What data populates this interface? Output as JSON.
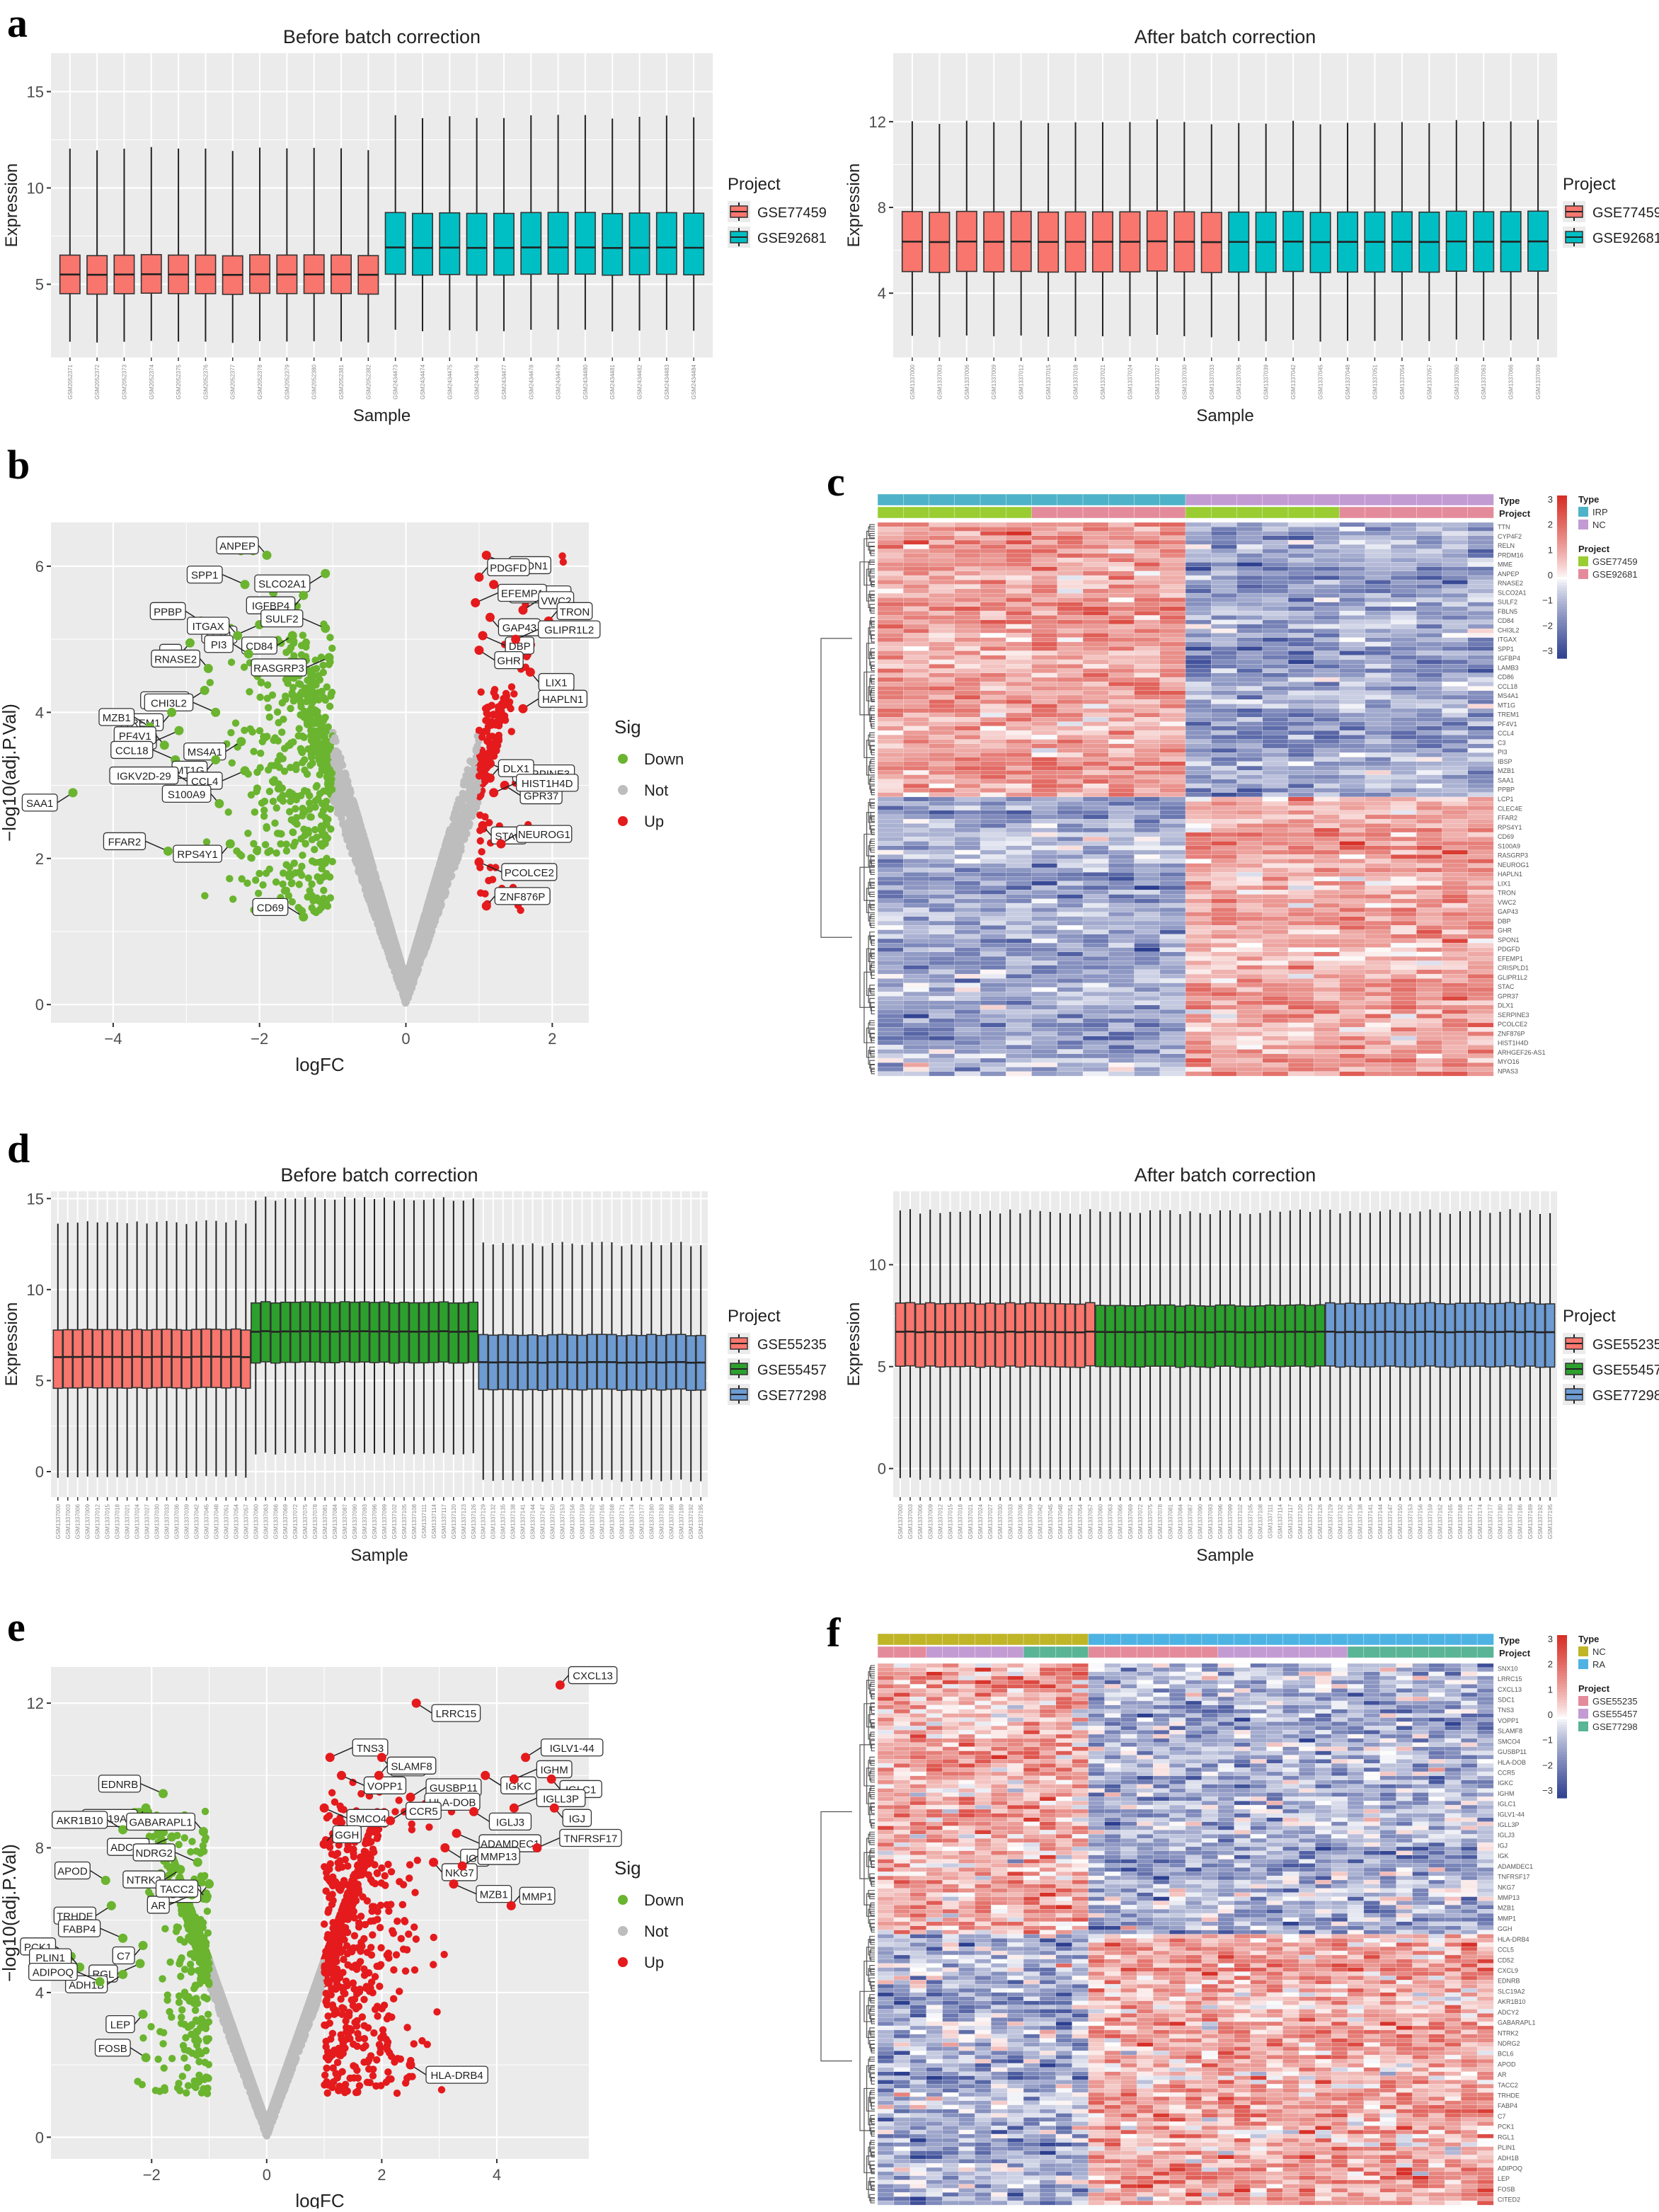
{
  "colors": {
    "panel_bg": "#ebebeb",
    "grid": "#ffffff",
    "red_box": "#f8766d",
    "teal_box": "#00bfc4",
    "green_box": "#2ca02c",
    "blue_box": "#6d9bd2",
    "down": "#6ab42f",
    "not": "#bdbdbd",
    "up": "#e41a1c",
    "heat_high": "#d7301f",
    "heat_mid": "#ffffff",
    "heat_low": "#2c3e8f",
    "type_irp": "#4eb3c8",
    "type_nc_c": "#c39bd3",
    "proj_a": "#9acd32",
    "proj_b": "#e48b9b",
    "type_nc_f": "#c0b527",
    "type_ra": "#4eb3e3",
    "proj_55235": "#e48b9b",
    "proj_55457": "#c39bd3",
    "proj_77298": "#5ab496"
  },
  "panels": {
    "a": {
      "letter": "a"
    },
    "b": {
      "letter": "b"
    },
    "c": {
      "letter": "c"
    },
    "d": {
      "letter": "d"
    },
    "e": {
      "letter": "e"
    },
    "f": {
      "letter": "f"
    }
  },
  "sample_ids_a1": [
    "GSM2052371",
    "GSM2052372",
    "GSM2052373",
    "GSM2052374",
    "GSM2052375",
    "GSM2052376",
    "GSM2052377",
    "GSM2052378",
    "GSM2052379",
    "GSM2052380",
    "GSM2052381",
    "GSM2052382",
    "GSM2434473",
    "GSM2434474",
    "GSM2434475",
    "GSM2434476",
    "GSM2434477",
    "GSM2434478",
    "GSM2434479",
    "GSM2434480",
    "GSM2434481",
    "GSM2434482",
    "GSM2434483",
    "GSM2434484"
  ],
  "chart_data": [
    {
      "id": "a_before",
      "type": "boxplot",
      "title": "Before batch correction",
      "xlabel": "Sample",
      "ylabel": "Expression",
      "ylim": [
        1.2,
        17
      ],
      "yticks": [
        5,
        10,
        15
      ],
      "legend_title": "Project",
      "legend": [
        "GSE77459",
        "GSE92681"
      ],
      "groups": [
        {
          "project": "GSE77459",
          "n": 12,
          "whisker_low": 2.0,
          "q1": 4.5,
          "median": 5.5,
          "q3": 6.5,
          "whisker_high": 12.0
        },
        {
          "project": "GSE92681",
          "n": 12,
          "whisker_low": 2.6,
          "q1": 5.5,
          "median": 6.9,
          "q3": 8.7,
          "whisker_high": 13.7
        }
      ]
    },
    {
      "id": "a_after",
      "type": "boxplot",
      "title": "After batch correction",
      "xlabel": "Sample",
      "ylabel": "Expression",
      "ylim": [
        1.0,
        15.2
      ],
      "yticks": [
        4,
        8,
        12
      ],
      "legend_title": "Project",
      "legend": [
        "GSE77459",
        "GSE92681"
      ],
      "groups": [
        {
          "project": "GSE77459",
          "n": 12,
          "whisker_low": 2.0,
          "q1": 5.0,
          "median": 6.4,
          "q3": 7.8,
          "whisker_high": 12.0
        },
        {
          "project": "GSE92681",
          "n": 12,
          "whisker_low": 1.8,
          "q1": 5.0,
          "median": 6.4,
          "q3": 7.8,
          "whisker_high": 12.0
        }
      ]
    },
    {
      "id": "b_volcano",
      "type": "scatter",
      "xlabel": "logFC",
      "ylabel": "−log10(adj.P.Val)",
      "xlim": [
        -4.85,
        2.5
      ],
      "ylim": [
        -0.25,
        6.6
      ],
      "xticks": [
        -4,
        -2,
        0,
        2
      ],
      "yticks": [
        0,
        2,
        4,
        6
      ],
      "legend_title": "Sig",
      "legend": [
        "Down",
        "Not",
        "Up"
      ],
      "labeled_points": [
        {
          "label": "ANPEP",
          "x": -1.9,
          "y": 6.15,
          "sig": "down"
        },
        {
          "label": "SLCO2A1",
          "x": -1.1,
          "y": 5.9,
          "sig": "down"
        },
        {
          "label": "SPP1",
          "x": -2.2,
          "y": 5.75,
          "sig": "down"
        },
        {
          "label": "IGFBP4",
          "x": -1.4,
          "y": 5.6,
          "sig": "down"
        },
        {
          "label": "PPBP",
          "x": -2.8,
          "y": 5.25,
          "sig": "down"
        },
        {
          "label": "LCP1",
          "x": -2.0,
          "y": 5.2,
          "sig": "down"
        },
        {
          "label": "ITGAX",
          "x": -2.3,
          "y": 5.05,
          "sig": "down"
        },
        {
          "label": "CD84",
          "x": -1.55,
          "y": 5.05,
          "sig": "down"
        },
        {
          "label": "SULF2",
          "x": -1.1,
          "y": 5.15,
          "sig": "down"
        },
        {
          "label": "C3",
          "x": -2.95,
          "y": 4.95,
          "sig": "down"
        },
        {
          "label": "PI3",
          "x": -2.15,
          "y": 4.8,
          "sig": "down"
        },
        {
          "label": "RASGRP3",
          "x": -1.05,
          "y": 4.75,
          "sig": "down"
        },
        {
          "label": "RNASE2",
          "x": -2.7,
          "y": 4.6,
          "sig": "down"
        },
        {
          "label": "CLEC4E",
          "x": -2.75,
          "y": 4.3,
          "sig": "down"
        },
        {
          "label": "CHI3L2",
          "x": -2.6,
          "y": 4.0,
          "sig": "down"
        },
        {
          "label": "TREM1",
          "x": -3.2,
          "y": 4.0,
          "sig": "down"
        },
        {
          "label": "MZB1",
          "x": -3.5,
          "y": 3.8,
          "sig": "down"
        },
        {
          "label": "IBSP",
          "x": -3.1,
          "y": 3.75,
          "sig": "down"
        },
        {
          "label": "PF4V1",
          "x": -3.3,
          "y": 3.55,
          "sig": "down"
        },
        {
          "label": "MS4A1",
          "x": -2.25,
          "y": 3.6,
          "sig": "down"
        },
        {
          "label": "CCL18",
          "x": -3.15,
          "y": 3.35,
          "sig": "down"
        },
        {
          "label": "MT1G",
          "x": -2.6,
          "y": 3.35,
          "sig": "down"
        },
        {
          "label": "IGKV2D-29",
          "x": -2.9,
          "y": 3.0,
          "sig": "down"
        },
        {
          "label": "CCL4",
          "x": -2.2,
          "y": 3.2,
          "sig": "down"
        },
        {
          "label": "S100A9",
          "x": -2.55,
          "y": 2.75,
          "sig": "down"
        },
        {
          "label": "SAA1",
          "x": -4.55,
          "y": 2.9,
          "sig": "down"
        },
        {
          "label": "FFAR2",
          "x": -3.25,
          "y": 2.1,
          "sig": "down"
        },
        {
          "label": "RPS4Y1",
          "x": -2.4,
          "y": 2.2,
          "sig": "down"
        },
        {
          "label": "CD69",
          "x": -1.4,
          "y": 1.2,
          "sig": "down"
        },
        {
          "label": "SPON1",
          "x": 1.1,
          "y": 6.15,
          "sig": "up"
        },
        {
          "label": "PDGFD",
          "x": 1.0,
          "y": 5.85,
          "sig": "up"
        },
        {
          "label": "CRISPLD1",
          "x": 1.2,
          "y": 5.75,
          "sig": "up"
        },
        {
          "label": "EFEMP1",
          "x": 0.95,
          "y": 5.5,
          "sig": "up"
        },
        {
          "label": "GAP43",
          "x": 1.15,
          "y": 5.3,
          "sig": "up"
        },
        {
          "label": "VWC2",
          "x": 1.6,
          "y": 5.4,
          "sig": "up"
        },
        {
          "label": "DBP",
          "x": 1.05,
          "y": 5.05,
          "sig": "up"
        },
        {
          "label": "TRON",
          "x": 1.95,
          "y": 5.25,
          "sig": "up"
        },
        {
          "label": "GHR",
          "x": 1.0,
          "y": 4.85,
          "sig": "up"
        },
        {
          "label": "GLIPR1L2",
          "x": 1.5,
          "y": 5.0,
          "sig": "up"
        },
        {
          "label": "LIX1",
          "x": 1.7,
          "y": 4.55,
          "sig": "up"
        },
        {
          "label": "HAPLN1",
          "x": 1.6,
          "y": 4.05,
          "sig": "up"
        },
        {
          "label": "SERPINE3",
          "x": 1.15,
          "y": 3.3,
          "sig": "up"
        },
        {
          "label": "DLX1",
          "x": 1.15,
          "y": 3.1,
          "sig": "up"
        },
        {
          "label": "GPR37",
          "x": 1.35,
          "y": 3.0,
          "sig": "up"
        },
        {
          "label": "HIST1H4D",
          "x": 1.2,
          "y": 2.9,
          "sig": "up"
        },
        {
          "label": "STAC",
          "x": 1.05,
          "y": 2.45,
          "sig": "up"
        },
        {
          "label": "NEUROG1",
          "x": 1.3,
          "y": 2.2,
          "sig": "up"
        },
        {
          "label": "PCOLCE2",
          "x": 1.0,
          "y": 1.95,
          "sig": "up"
        },
        {
          "label": "ZNF876P",
          "x": 1.1,
          "y": 1.35,
          "sig": "up"
        }
      ]
    },
    {
      "id": "c_heatmap",
      "type": "heatmap",
      "rows": 125,
      "cols": 24,
      "scale_ticks": [
        "3",
        "2",
        "1",
        "0",
        "−1",
        "−2",
        "−3"
      ],
      "annotation_titles": [
        "Type",
        "Project"
      ],
      "legend_type_title": "Type",
      "legend_type": [
        "IRP",
        "NC"
      ],
      "legend_project_title": "Project",
      "legend_project": [
        "GSE77459",
        "GSE92681"
      ],
      "row_labels_visible": [
        "TTN",
        "CYP4F2",
        "RELN",
        "PRDM16",
        "MME",
        "ANPEP",
        "RNASE2",
        "SLCO2A1",
        "SULF2",
        "FBLN5",
        "CD84",
        "CHI3L2",
        "ITGAX",
        "SPP1",
        "IGFBP4",
        "LAMB3",
        "CD86",
        "CCL18",
        "MS4A1",
        "MT1G",
        "TREM1",
        "PF4V1",
        "CCL4",
        "C3",
        "PI3",
        "IBSP",
        "MZB1",
        "SAA1",
        "PPBP",
        "LCP1",
        "CLEC4E",
        "FFAR2",
        "RPS4Y1",
        "CD69",
        "S100A9",
        "RASGRP3",
        "NEUROG1",
        "HAPLN1",
        "LIX1",
        "TRON",
        "VWC2",
        "GAP43",
        "DBP",
        "GHR",
        "SPON1",
        "PDGFD",
        "EFEMP1",
        "CRISPLD1",
        "GLIPR1L2",
        "STAC",
        "GPR37",
        "DLX1",
        "SERPINE3",
        "PCOLCE2",
        "ZNF876P",
        "HIST1H4D",
        "ARHGEF26-AS1",
        "MYO16",
        "NPAS3"
      ]
    },
    {
      "id": "d_before",
      "type": "boxplot",
      "title": "Before batch correction",
      "xlabel": "Sample",
      "ylabel": "Expression",
      "ylim": [
        -1.4,
        15.4
      ],
      "yticks": [
        0,
        5,
        10,
        15
      ],
      "legend_title": "Project",
      "legend": [
        "GSE55235",
        "GSE55457",
        "GSE77298"
      ],
      "groups": [
        {
          "project": "GSE55235",
          "n": 20,
          "whisker_low": -0.3,
          "q1": 4.6,
          "median": 6.3,
          "q3": 7.8,
          "whisker_high": 13.7
        },
        {
          "project": "GSE55457",
          "n": 23,
          "whisker_low": 1.0,
          "q1": 6.0,
          "median": 7.7,
          "q3": 9.3,
          "whisker_high": 15.0
        },
        {
          "project": "GSE77298",
          "n": 23,
          "whisker_low": -0.5,
          "q1": 4.5,
          "median": 6.0,
          "q3": 7.5,
          "whisker_high": 12.5
        }
      ]
    },
    {
      "id": "d_after",
      "type": "boxplot",
      "title": "After batch correction",
      "xlabel": "Sample",
      "ylabel": "Expression",
      "ylim": [
        -1.4,
        13.6
      ],
      "yticks": [
        0,
        5,
        10
      ],
      "legend_title": "Project",
      "legend": [
        "GSE55235",
        "GSE55457",
        "GSE77298"
      ],
      "groups": [
        {
          "project": "GSE55235",
          "n": 20,
          "whisker_low": -0.5,
          "q1": 5.0,
          "median": 6.7,
          "q3": 8.1,
          "whisker_high": 12.6
        },
        {
          "project": "GSE55457",
          "n": 23,
          "whisker_low": -0.5,
          "q1": 5.0,
          "median": 6.7,
          "q3": 8.0,
          "whisker_high": 12.6
        },
        {
          "project": "GSE77298",
          "n": 23,
          "whisker_low": -0.5,
          "q1": 5.0,
          "median": 6.7,
          "q3": 8.1,
          "whisker_high": 12.6
        }
      ]
    },
    {
      "id": "e_volcano",
      "type": "scatter",
      "xlabel": "logFC",
      "ylabel": "−log10(adj.P.Val)",
      "xlim": [
        -3.75,
        5.6
      ],
      "ylim": [
        -0.6,
        13.0
      ],
      "xticks": [
        -2,
        0,
        2,
        4
      ],
      "yticks": [
        0,
        4,
        8,
        12
      ],
      "legend_title": "Sig",
      "legend": [
        "Down",
        "Not",
        "Up"
      ],
      "labeled_points": [
        {
          "label": "CXCL13",
          "x": 5.1,
          "y": 12.5,
          "sig": "up"
        },
        {
          "label": "LRRC15",
          "x": 2.6,
          "y": 12.0,
          "sig": "up"
        },
        {
          "label": "TNS3",
          "x": 1.1,
          "y": 10.5,
          "sig": "up"
        },
        {
          "label": "SDC1",
          "x": 2.0,
          "y": 10.5,
          "sig": "up"
        },
        {
          "label": "IGLV1-44",
          "x": 4.5,
          "y": 10.5,
          "sig": "up"
        },
        {
          "label": "VOPP1",
          "x": 1.3,
          "y": 10.0,
          "sig": "up"
        },
        {
          "label": "SLAMF8",
          "x": 1.95,
          "y": 10.0,
          "sig": "up"
        },
        {
          "label": "IGKC",
          "x": 3.8,
          "y": 10.0,
          "sig": "up"
        },
        {
          "label": "IGHM",
          "x": 4.3,
          "y": 9.9,
          "sig": "up"
        },
        {
          "label": "IGLC1",
          "x": 4.95,
          "y": 9.9,
          "sig": "up"
        },
        {
          "label": "GUSBP11",
          "x": 2.5,
          "y": 9.4,
          "sig": "up"
        },
        {
          "label": "SMCO4",
          "x": 1.0,
          "y": 9.1,
          "sig": "up"
        },
        {
          "label": "HLA-DOB",
          "x": 2.6,
          "y": 9.0,
          "sig": "up"
        },
        {
          "label": "IGLJ3",
          "x": 3.6,
          "y": 9.0,
          "sig": "up"
        },
        {
          "label": "IGLL3P",
          "x": 4.3,
          "y": 9.1,
          "sig": "up"
        },
        {
          "label": "IGJ",
          "x": 5.0,
          "y": 9.1,
          "sig": "up"
        },
        {
          "label": "CCR5",
          "x": 2.15,
          "y": 8.75,
          "sig": "up"
        },
        {
          "label": "ADAMDEC1",
          "x": 3.3,
          "y": 8.4,
          "sig": "up"
        },
        {
          "label": "GGH",
          "x": 1.0,
          "y": 8.1,
          "sig": "up"
        },
        {
          "label": "IGK",
          "x": 3.1,
          "y": 8.0,
          "sig": "up"
        },
        {
          "label": "TNFRSF17",
          "x": 4.7,
          "y": 8.0,
          "sig": "up"
        },
        {
          "label": "NKG7",
          "x": 2.9,
          "y": 7.6,
          "sig": "up"
        },
        {
          "label": "MMP13",
          "x": 3.4,
          "y": 7.5,
          "sig": "up"
        },
        {
          "label": "MZB1",
          "x": 3.25,
          "y": 7.0,
          "sig": "up"
        },
        {
          "label": "MMP1",
          "x": 4.25,
          "y": 6.4,
          "sig": "up"
        },
        {
          "label": "HLA-DRB4",
          "x": 2.5,
          "y": 2.0,
          "sig": "up"
        },
        {
          "label": "EDNRB",
          "x": -1.8,
          "y": 9.5,
          "sig": "down"
        },
        {
          "label": "SLC19A2",
          "x": -2.1,
          "y": 9.1,
          "sig": "down"
        },
        {
          "label": "AKR1B10",
          "x": -2.5,
          "y": 8.5,
          "sig": "down"
        },
        {
          "label": "ADCY2",
          "x": -1.65,
          "y": 8.3,
          "sig": "down"
        },
        {
          "label": "GABARAPL1",
          "x": -1.1,
          "y": 8.45,
          "sig": "down"
        },
        {
          "label": "NTRK2",
          "x": -1.5,
          "y": 7.4,
          "sig": "down"
        },
        {
          "label": "NDRG2",
          "x": -1.2,
          "y": 7.6,
          "sig": "down"
        },
        {
          "label": "BCL6",
          "x": -1.0,
          "y": 7.0,
          "sig": "down"
        },
        {
          "label": "APOD",
          "x": -2.8,
          "y": 7.1,
          "sig": "down"
        },
        {
          "label": "AR",
          "x": -1.3,
          "y": 6.7,
          "sig": "down"
        },
        {
          "label": "TACC2",
          "x": -1.05,
          "y": 6.6,
          "sig": "down"
        },
        {
          "label": "TRHDE",
          "x": -2.7,
          "y": 6.4,
          "sig": "down"
        },
        {
          "label": "FABP4",
          "x": -2.5,
          "y": 5.5,
          "sig": "down"
        },
        {
          "label": "C7",
          "x": -2.15,
          "y": 5.3,
          "sig": "down"
        },
        {
          "label": "PCK1",
          "x": -3.4,
          "y": 5.0,
          "sig": "down"
        },
        {
          "label": "RGL",
          "x": -2.2,
          "y": 4.8,
          "sig": "down"
        },
        {
          "label": "PLIN1",
          "x": -3.25,
          "y": 4.7,
          "sig": "down"
        },
        {
          "label": "ADH1B",
          "x": -2.5,
          "y": 4.5,
          "sig": "down"
        },
        {
          "label": "ADIPOQ",
          "x": -2.9,
          "y": 4.3,
          "sig": "down"
        },
        {
          "label": "LEP",
          "x": -2.15,
          "y": 3.4,
          "sig": "down"
        },
        {
          "label": "FOSB",
          "x": -2.1,
          "y": 2.2,
          "sig": "down"
        }
      ]
    },
    {
      "id": "f_heatmap",
      "type": "heatmap",
      "rows": 130,
      "cols": 38,
      "scale_ticks": [
        "3",
        "2",
        "1",
        "0",
        "−1",
        "−2",
        "−3"
      ],
      "annotation_titles": [
        "Type",
        "Project"
      ],
      "legend_type_title": "Type",
      "legend_type": [
        "NC",
        "RA"
      ],
      "legend_project_title": "Project",
      "legend_project": [
        "GSE55235",
        "GSE55457",
        "GSE77298"
      ],
      "row_labels_visible": [
        "SNX10",
        "LRRC15",
        "CXCL13",
        "SDC1",
        "TNS3",
        "VOPP1",
        "SLAMF8",
        "SMCO4",
        "GUSBP11",
        "HLA-DOB",
        "CCR5",
        "IGKC",
        "IGHM",
        "IGLC1",
        "IGLV1-44",
        "IGLL3P",
        "IGLJ3",
        "IGJ",
        "IGK",
        "ADAMDEC1",
        "TNFRSF17",
        "NKG7",
        "MMP13",
        "MZB1",
        "MMP1",
        "GGH",
        "HLA-DRB4",
        "CCL5",
        "CD52",
        "CXCL9",
        "EDNRB",
        "SLC19A2",
        "AKR1B10",
        "ADCY2",
        "GABARAPL1",
        "NTRK2",
        "NDRG2",
        "BCL6",
        "APOD",
        "AR",
        "TACC2",
        "TRHDE",
        "FABP4",
        "C7",
        "PCK1",
        "RGL1",
        "PLIN1",
        "ADH1B",
        "ADIPOQ",
        "LEP",
        "FOSB",
        "CITED2"
      ]
    }
  ]
}
